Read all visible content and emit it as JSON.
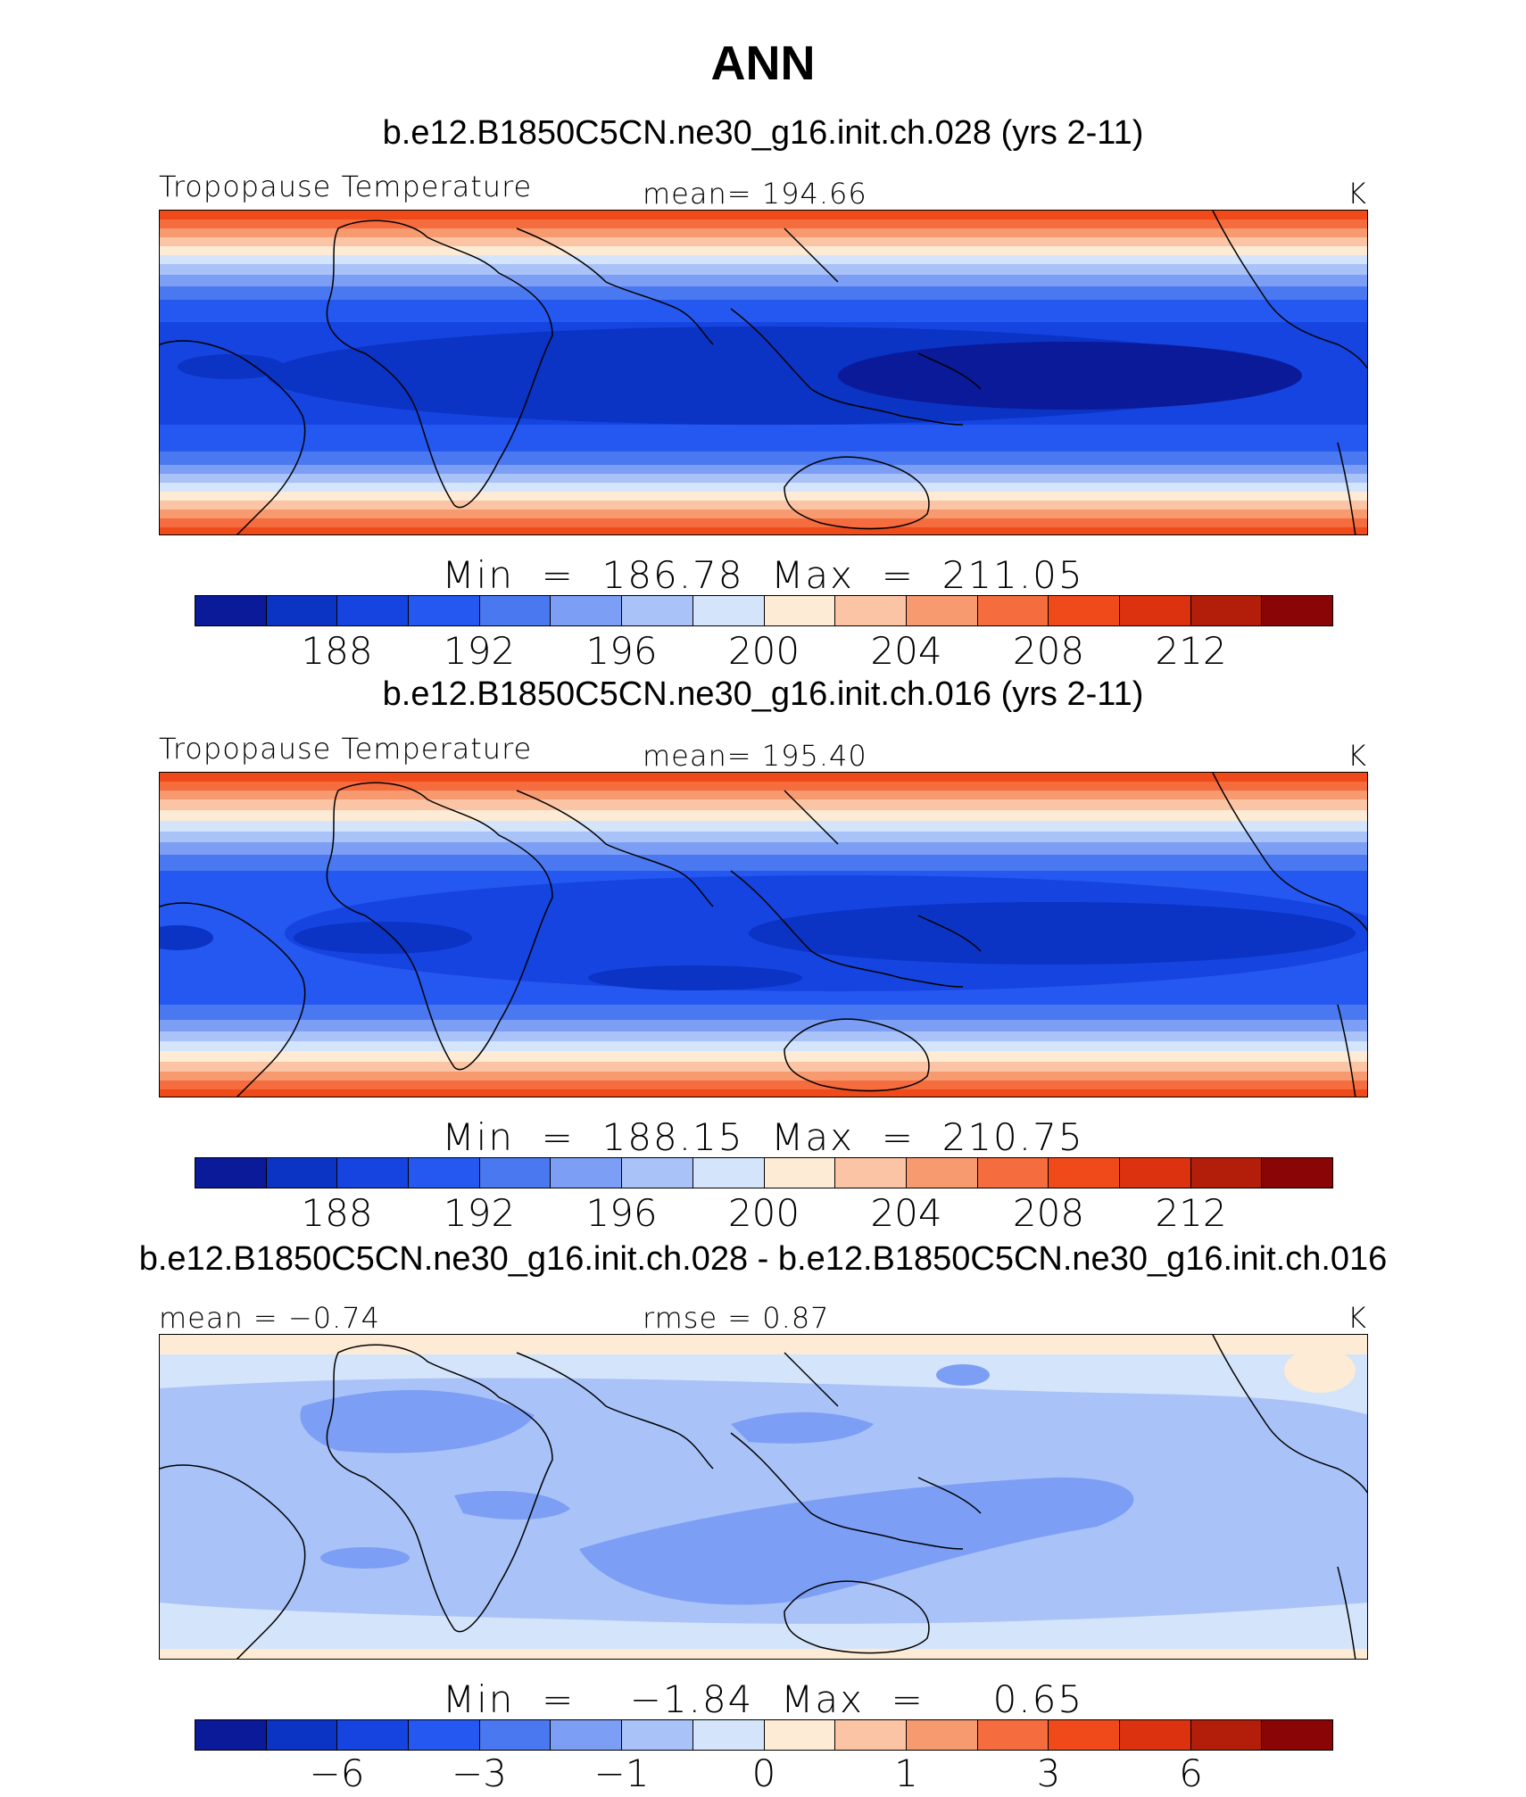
{
  "main_title": "ANN",
  "colors": [
    "#0a1a99",
    "#0b33c4",
    "#1544e0",
    "#2558f0",
    "#4a78f0",
    "#7c9ef4",
    "#a9c2f8",
    "#d4e4fa",
    "#fdebd5",
    "#fbc4a4",
    "#f89a70",
    "#f56c3e",
    "#f0491a",
    "#dc3210",
    "#b21e0a",
    "#8a0505"
  ],
  "panels": [
    {
      "case": "b.e12.B1850C5CN.ne30_g16.init.ch.028 (yrs 2-11)",
      "left": "Tropopause Temperature",
      "center": "mean= 194.66",
      "units": "K",
      "minmax": "Min  =  186.78  Max  =  211.05",
      "ticks": [
        "188",
        "192",
        "196",
        "200",
        "204",
        "208",
        "212"
      ],
      "field_description": "zonal bands: coldest (~187 K) in tropical tropopause over western Pacific/Maritime continent, warmest (~211 K) at high latitudes"
    },
    {
      "case": "b.e12.B1850C5CN.ne30_g16.init.ch.016 (yrs 2-11)",
      "left": "Tropopause Temperature",
      "center": "mean= 195.40",
      "units": "K",
      "minmax": "Min  =  188.15  Max  =  210.75",
      "ticks": [
        "188",
        "192",
        "196",
        "200",
        "204",
        "208",
        "212"
      ],
      "field_description": "zonal bands similar to first panel, slightly warmer tropics"
    },
    {
      "case": "b.e12.B1850C5CN.ne30_g16.init.ch.028 - b.e12.B1850C5CN.ne30_g16.init.ch.016",
      "left": "mean =   −0.74",
      "center": "rmse =     0.87",
      "units": "K",
      "minmax": "Min  =    −1.84  Max  =     0.65",
      "ticks": [
        "−6",
        "−3",
        "−1",
        "0",
        "1",
        "3",
        "6"
      ],
      "field_description": "difference mostly -1 to 0 K, patches -3 to -1 K over tropics, slightly positive near poles"
    }
  ]
}
